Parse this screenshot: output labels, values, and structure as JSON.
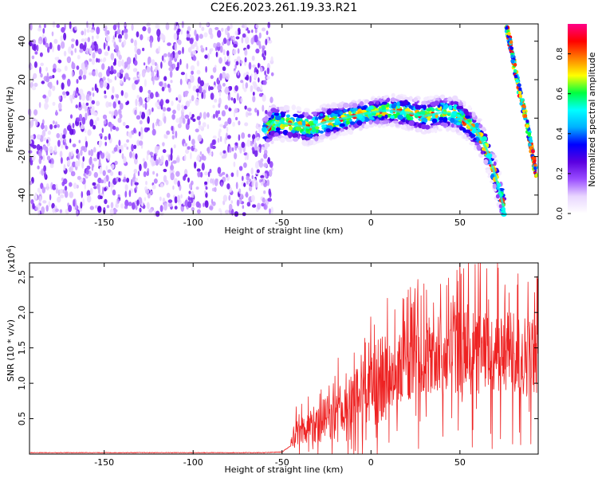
{
  "figure": {
    "title": "C2E6.2023.261.19.33.R21"
  },
  "chart_data": [
    {
      "type": "heatmap",
      "title": "",
      "xlabel": "Height of straight line (km)",
      "ylabel": "Frequency (Hz)",
      "xlim": [
        -192,
        94
      ],
      "ylim": [
        -50,
        49
      ],
      "xticks": [
        -150,
        -100,
        -50,
        0,
        50
      ],
      "yticks": [
        -40,
        -20,
        0,
        20,
        40
      ],
      "grid": false,
      "colorbar": {
        "label": "Normalized spectral amplitude",
        "range": [
          0,
          0.95
        ],
        "ticks": [
          0.0,
          0.2,
          0.4,
          0.6,
          0.8
        ],
        "colormap": [
          "#ffffff",
          "#e9d6ff",
          "#9a4dff",
          "#5a00e0",
          "#0000ff",
          "#00b0ff",
          "#00ffff",
          "#00ff40",
          "#ffff00",
          "#ff8000",
          "#ff0000",
          "#ff0088"
        ]
      },
      "features": {
        "noise_region_x": [
          -192,
          -58
        ],
        "noise_amplitude": 0.15,
        "ridge": [
          [
            -60,
            -8
          ],
          [
            -55,
            -2
          ],
          [
            -45,
            -3
          ],
          [
            -35,
            -5
          ],
          [
            -25,
            -2
          ],
          [
            -15,
            0
          ],
          [
            -5,
            2
          ],
          [
            0,
            3
          ],
          [
            10,
            4
          ],
          [
            20,
            3
          ],
          [
            30,
            1
          ],
          [
            40,
            3
          ],
          [
            48,
            2
          ],
          [
            55,
            -3
          ],
          [
            60,
            -8
          ],
          [
            65,
            -16
          ],
          [
            70,
            -30
          ],
          [
            75,
            -48
          ]
        ],
        "ridge_peak_amplitude": 0.9,
        "alias_line": [
          [
            76,
            49
          ],
          [
            82,
            20
          ],
          [
            87,
            0
          ],
          [
            93,
            -30
          ]
        ]
      }
    },
    {
      "type": "line",
      "title": "",
      "xlabel": "Height of straight line (km)",
      "ylabel": "SNR (10 * v/v)",
      "yscale_label": "(x10",
      "yscale_exp": "4",
      "yscale_close": ")",
      "xlim": [
        -192,
        94
      ],
      "ylim": [
        0,
        2.7
      ],
      "xticks": [
        -150,
        -100,
        -50,
        0,
        50
      ],
      "yticks": [
        0.5,
        1.0,
        1.5,
        2.0,
        2.5
      ],
      "series": [
        {
          "color": "#ee2222",
          "x": [
            -192,
            -60,
            -50,
            -45,
            -42,
            -38,
            -30,
            -20,
            -10,
            0,
            10,
            20,
            30,
            40,
            50,
            60,
            70,
            80,
            94
          ],
          "y": [
            0.02,
            0.02,
            0.03,
            0.12,
            0.3,
            0.35,
            0.45,
            0.55,
            0.7,
            0.9,
            1.1,
            1.25,
            1.35,
            1.4,
            1.45,
            1.42,
            1.4,
            1.38,
            1.4
          ]
        }
      ]
    }
  ]
}
